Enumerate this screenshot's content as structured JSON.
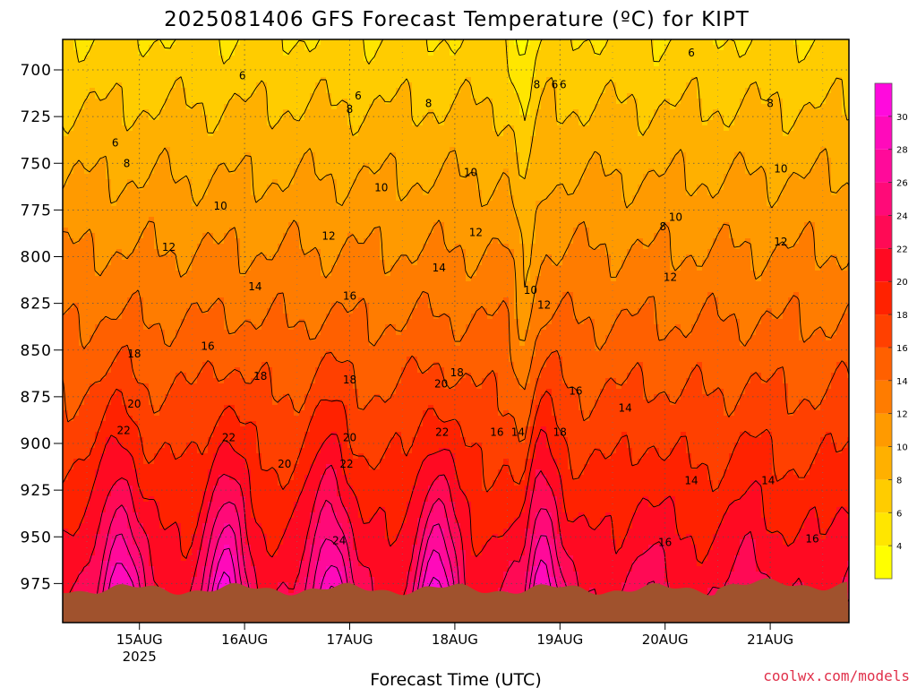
{
  "chart_data": {
    "type": "heatmap",
    "title": "2025081406 GFS Forecast Temperature (ºC) for KIPT",
    "xlabel": "Forecast Time (UTC)",
    "ylabel": "",
    "y_scale": "pressure (hPa), inverted",
    "ylim": [
      985,
      685
    ],
    "y_ticks": [
      "700",
      "725",
      "750",
      "775",
      "800",
      "825",
      "850",
      "875",
      "900",
      "925",
      "950",
      "975"
    ],
    "x_ticks": [
      {
        "label": "15AUG",
        "sublabel": "2025"
      },
      {
        "label": "16AUG"
      },
      {
        "label": "17AUG"
      },
      {
        "label": "18AUG"
      },
      {
        "label": "19AUG"
      },
      {
        "label": "20AUG"
      },
      {
        "label": "21AUG"
      }
    ],
    "grid": true,
    "terrain_fill": "#a0522d",
    "colorbar": {
      "labels": [
        "4",
        "6",
        "8",
        "10",
        "12",
        "14",
        "16",
        "18",
        "20",
        "22",
        "24",
        "26",
        "28",
        "30"
      ],
      "bins": [
        {
          "min": 2,
          "max": 4,
          "color": "#ffff00"
        },
        {
          "min": 4,
          "max": 6,
          "color": "#ffe600"
        },
        {
          "min": 6,
          "max": 8,
          "color": "#ffcc00"
        },
        {
          "min": 8,
          "max": 10,
          "color": "#ffb000"
        },
        {
          "min": 10,
          "max": 12,
          "color": "#ff9a00"
        },
        {
          "min": 12,
          "max": 14,
          "color": "#ff7c00"
        },
        {
          "min": 14,
          "max": 16,
          "color": "#ff6000"
        },
        {
          "min": 16,
          "max": 18,
          "color": "#ff4000"
        },
        {
          "min": 18,
          "max": 20,
          "color": "#ff2200"
        },
        {
          "min": 20,
          "max": 22,
          "color": "#ff0a22"
        },
        {
          "min": 22,
          "max": 24,
          "color": "#ff0a55"
        },
        {
          "min": 24,
          "max": 26,
          "color": "#ff0a78"
        },
        {
          "min": 26,
          "max": 28,
          "color": "#ff0a9a"
        },
        {
          "min": 28,
          "max": 30,
          "color": "#ff0abb"
        },
        {
          "min": 30,
          "max": 32,
          "color": "#ff0add"
        }
      ]
    },
    "contour_labels": [
      {
        "day": 14.77,
        "p": 739,
        "text": "6"
      },
      {
        "day": 15.98,
        "p": 703,
        "text": "6"
      },
      {
        "day": 17.08,
        "p": 714,
        "text": "6"
      },
      {
        "day": 18.95,
        "p": 708,
        "text": "6"
      },
      {
        "day": 19.03,
        "p": 708,
        "text": "6"
      },
      {
        "day": 20.25,
        "p": 691,
        "text": "6"
      },
      {
        "day": 14.88,
        "p": 750,
        "text": "8"
      },
      {
        "day": 17.0,
        "p": 721,
        "text": "8"
      },
      {
        "day": 17.75,
        "p": 718,
        "text": "8"
      },
      {
        "day": 18.78,
        "p": 708,
        "text": "8"
      },
      {
        "day": 19.98,
        "p": 784,
        "text": "8"
      },
      {
        "day": 21.0,
        "p": 718,
        "text": "8"
      },
      {
        "day": 15.77,
        "p": 773,
        "text": "10"
      },
      {
        "day": 17.3,
        "p": 763,
        "text": "10"
      },
      {
        "day": 18.15,
        "p": 755,
        "text": "10"
      },
      {
        "day": 18.72,
        "p": 818,
        "text": "10"
      },
      {
        "day": 20.1,
        "p": 779,
        "text": "10"
      },
      {
        "day": 21.1,
        "p": 753,
        "text": "10"
      },
      {
        "day": 15.28,
        "p": 795,
        "text": "12"
      },
      {
        "day": 16.8,
        "p": 789,
        "text": "12"
      },
      {
        "day": 18.2,
        "p": 787,
        "text": "12"
      },
      {
        "day": 18.85,
        "p": 826,
        "text": "12"
      },
      {
        "day": 20.05,
        "p": 811,
        "text": "12"
      },
      {
        "day": 21.1,
        "p": 792,
        "text": "12"
      },
      {
        "day": 14.05,
        "p": 811,
        "text": "14"
      },
      {
        "day": 16.1,
        "p": 816,
        "text": "14"
      },
      {
        "day": 17.85,
        "p": 806,
        "text": "14"
      },
      {
        "day": 18.6,
        "p": 894,
        "text": "14"
      },
      {
        "day": 19.62,
        "p": 881,
        "text": "14"
      },
      {
        "day": 20.25,
        "p": 920,
        "text": "14"
      },
      {
        "day": 20.98,
        "p": 920,
        "text": "14"
      },
      {
        "day": 15.65,
        "p": 848,
        "text": "16"
      },
      {
        "day": 17.0,
        "p": 821,
        "text": "16"
      },
      {
        "day": 18.4,
        "p": 894,
        "text": "16"
      },
      {
        "day": 19.15,
        "p": 872,
        "text": "16"
      },
      {
        "day": 20.0,
        "p": 953,
        "text": "16"
      },
      {
        "day": 21.4,
        "p": 951,
        "text": "16"
      },
      {
        "day": 14.95,
        "p": 852,
        "text": "18"
      },
      {
        "day": 16.15,
        "p": 864,
        "text": "18"
      },
      {
        "day": 17.0,
        "p": 866,
        "text": "18"
      },
      {
        "day": 18.02,
        "p": 862,
        "text": "18"
      },
      {
        "day": 19.0,
        "p": 894,
        "text": "18"
      },
      {
        "day": 14.95,
        "p": 879,
        "text": "20"
      },
      {
        "day": 16.38,
        "p": 911,
        "text": "20"
      },
      {
        "day": 17.0,
        "p": 897,
        "text": "20"
      },
      {
        "day": 17.87,
        "p": 868,
        "text": "20"
      },
      {
        "day": 14.85,
        "p": 893,
        "text": "22"
      },
      {
        "day": 15.85,
        "p": 897,
        "text": "22"
      },
      {
        "day": 16.97,
        "p": 911,
        "text": "22"
      },
      {
        "day": 17.88,
        "p": 894,
        "text": "22"
      },
      {
        "day": 16.9,
        "p": 952,
        "text": "24"
      }
    ]
  },
  "credit": "coolwx.com/models"
}
